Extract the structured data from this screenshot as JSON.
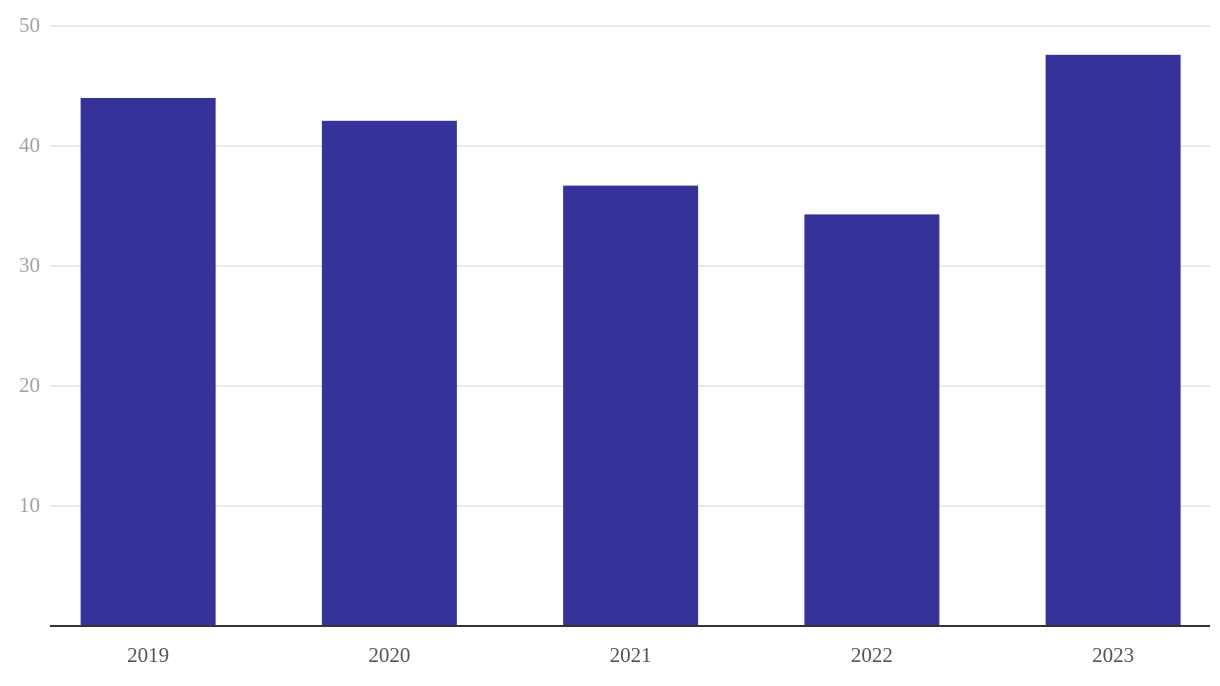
{
  "chart_data": {
    "type": "bar",
    "categories": [
      "2019",
      "2020",
      "2021",
      "2022",
      "2023"
    ],
    "values": [
      44.0,
      42.1,
      36.7,
      34.3,
      47.6
    ],
    "color": "#35339a",
    "ylim": [
      0,
      50
    ],
    "yticks": [
      10,
      20,
      30,
      40,
      50
    ],
    "grid": true
  }
}
